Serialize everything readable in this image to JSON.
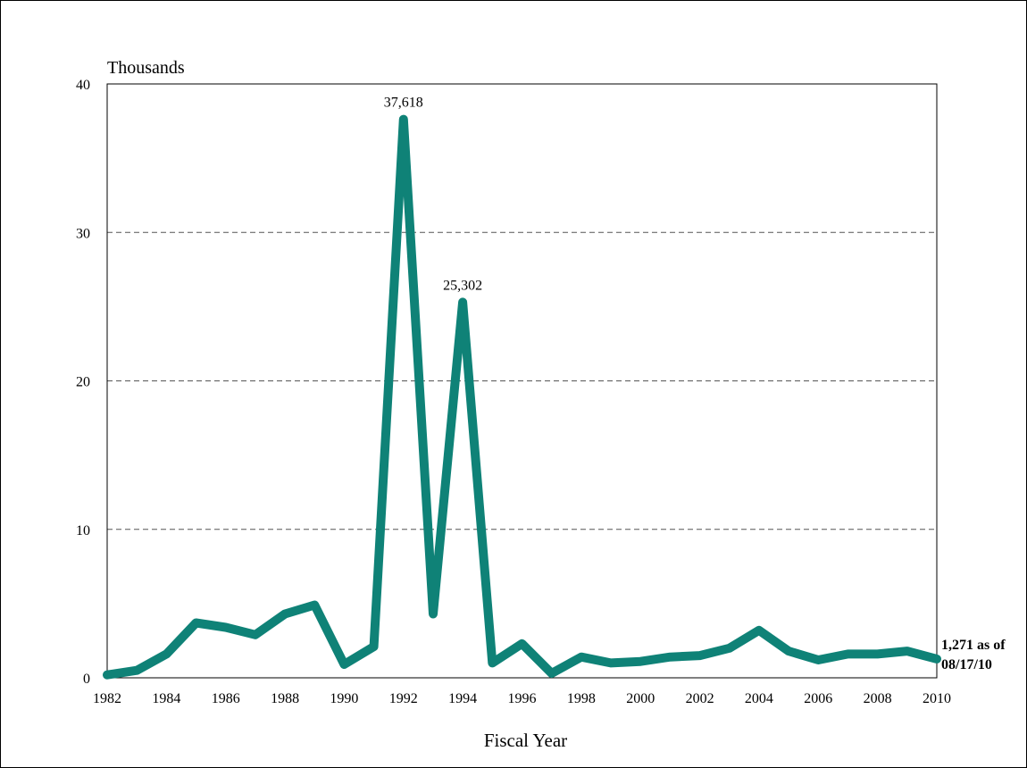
{
  "chart_data": {
    "type": "line",
    "ylabel": "Thousands",
    "xlabel": "Fiscal Year",
    "ylim": [
      0,
      40
    ],
    "yticks": [
      "0",
      "10",
      "20",
      "30",
      "40"
    ],
    "xtick_labels": [
      "1982",
      "1984",
      "1986",
      "1988",
      "1990",
      "1992",
      "1994",
      "1996",
      "1998",
      "2000",
      "2002",
      "2004",
      "2006",
      "2008",
      "2010"
    ],
    "grid": "horizontal dashed at 10, 20, 30",
    "series": [
      {
        "color": "#0f8277",
        "x": [
          1982,
          1983,
          1984,
          1985,
          1986,
          1987,
          1988,
          1989,
          1990,
          1991,
          1992,
          1993,
          1994,
          1995,
          1996,
          1997,
          1998,
          1999,
          2000,
          2001,
          2002,
          2003,
          2004,
          2005,
          2006,
          2007,
          2008,
          2009,
          2010
        ],
        "values": [
          0.2,
          0.5,
          1.6,
          3.7,
          3.4,
          2.9,
          4.3,
          4.9,
          0.9,
          2.1,
          37.618,
          4.3,
          25.302,
          1.0,
          2.3,
          0.3,
          1.4,
          1.0,
          1.1,
          1.4,
          1.5,
          2.0,
          3.2,
          1.8,
          1.2,
          1.6,
          1.6,
          1.8,
          1.271
        ]
      }
    ],
    "annotations": [
      {
        "x": 1992,
        "text": "37,618"
      },
      {
        "x": 1994,
        "text": "25,302"
      }
    ],
    "end_label": [
      "1,271 as of",
      "08/17/10"
    ]
  }
}
